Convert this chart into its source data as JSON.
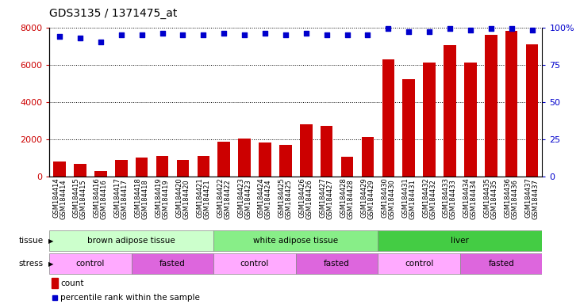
{
  "title": "GDS3135 / 1371475_at",
  "samples": [
    "GSM184414",
    "GSM184415",
    "GSM184416",
    "GSM184417",
    "GSM184418",
    "GSM184419",
    "GSM184420",
    "GSM184421",
    "GSM184422",
    "GSM184423",
    "GSM184424",
    "GSM184425",
    "GSM184426",
    "GSM184427",
    "GSM184428",
    "GSM184429",
    "GSM184430",
    "GSM184431",
    "GSM184432",
    "GSM184433",
    "GSM184434",
    "GSM184435",
    "GSM184436",
    "GSM184437"
  ],
  "counts": [
    800,
    650,
    280,
    900,
    1000,
    1100,
    900,
    1080,
    1850,
    2020,
    1820,
    1680,
    2800,
    2700,
    1050,
    2100,
    6300,
    5200,
    6100,
    7050,
    6100,
    7600,
    7800,
    7100
  ],
  "percentile": [
    94,
    93,
    90,
    95,
    95,
    96,
    95,
    95,
    96,
    95,
    96,
    95,
    96,
    95,
    95,
    95,
    99,
    97,
    97,
    99,
    98,
    99,
    99,
    98
  ],
  "bar_color": "#cc0000",
  "dot_color": "#0000cc",
  "ylim_left": [
    0,
    8000
  ],
  "ylim_right": [
    0,
    100
  ],
  "yticks_left": [
    0,
    2000,
    4000,
    6000,
    8000
  ],
  "yticks_right": [
    0,
    25,
    50,
    75,
    100
  ],
  "tissue_groups": [
    {
      "label": "brown adipose tissue",
      "start": 0,
      "end": 7,
      "color": "#ccffcc"
    },
    {
      "label": "white adipose tissue",
      "start": 8,
      "end": 15,
      "color": "#88ee88"
    },
    {
      "label": "liver",
      "start": 16,
      "end": 23,
      "color": "#44cc44"
    }
  ],
  "stress_groups": [
    {
      "label": "control",
      "start": 0,
      "end": 3,
      "color": "#ffaaff"
    },
    {
      "label": "fasted",
      "start": 4,
      "end": 7,
      "color": "#dd66dd"
    },
    {
      "label": "control",
      "start": 8,
      "end": 11,
      "color": "#ffaaff"
    },
    {
      "label": "fasted",
      "start": 12,
      "end": 15,
      "color": "#dd66dd"
    },
    {
      "label": "control",
      "start": 16,
      "end": 19,
      "color": "#ffaaff"
    },
    {
      "label": "fasted",
      "start": 20,
      "end": 23,
      "color": "#dd66dd"
    }
  ],
  "background_color": "#ffffff"
}
